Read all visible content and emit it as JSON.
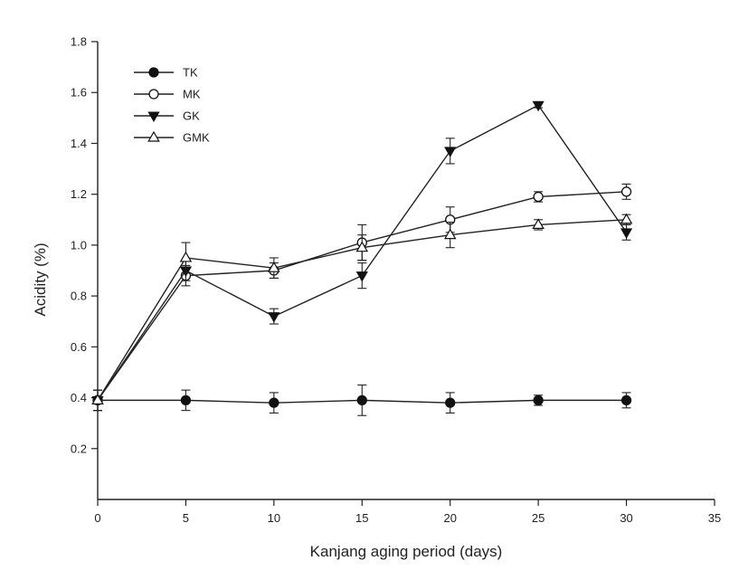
{
  "chart_data": {
    "type": "line",
    "xlabel": "Kanjang aging period (days)",
    "ylabel": "Acidity (%)",
    "xlim": [
      0,
      35
    ],
    "ylim": [
      0,
      1.8
    ],
    "x_ticks": [
      0,
      5,
      10,
      15,
      20,
      25,
      30,
      35
    ],
    "y_ticks": [
      0.2,
      0.4,
      0.6,
      0.8,
      1.0,
      1.2,
      1.4,
      1.6,
      1.8
    ],
    "y_tick_labels": [
      "0.2",
      "0.4",
      "0.6",
      "0.8",
      "1.0",
      "1.2",
      "1.4",
      "1.6",
      "1.8"
    ],
    "grid": false,
    "legend_position": "top-left",
    "x": [
      0,
      5,
      10,
      15,
      20,
      25,
      30
    ],
    "series": [
      {
        "name": "TK",
        "marker": "circle-filled",
        "values": [
          0.39,
          0.39,
          0.38,
          0.39,
          0.38,
          0.39,
          0.39
        ],
        "errors": [
          0.04,
          0.04,
          0.04,
          0.06,
          0.04,
          0.02,
          0.03
        ]
      },
      {
        "name": "MK",
        "marker": "circle-open",
        "values": [
          0.39,
          0.88,
          0.9,
          1.01,
          1.1,
          1.19,
          1.21
        ],
        "errors": [
          0.04,
          0.04,
          0.03,
          0.07,
          0.05,
          0.02,
          0.03
        ]
      },
      {
        "name": "GK",
        "marker": "triangle-down-filled",
        "values": [
          0.39,
          0.9,
          0.72,
          0.88,
          1.37,
          1.55,
          1.05
        ],
        "errors": [
          0.04,
          0.04,
          0.03,
          0.05,
          0.05,
          0.01,
          0.03
        ]
      },
      {
        "name": "GMK",
        "marker": "triangle-up-open",
        "values": [
          0.39,
          0.95,
          0.91,
          0.99,
          1.04,
          1.08,
          1.1
        ],
        "errors": [
          0.04,
          0.06,
          0.04,
          0.05,
          0.05,
          0.02,
          0.02
        ]
      }
    ]
  }
}
